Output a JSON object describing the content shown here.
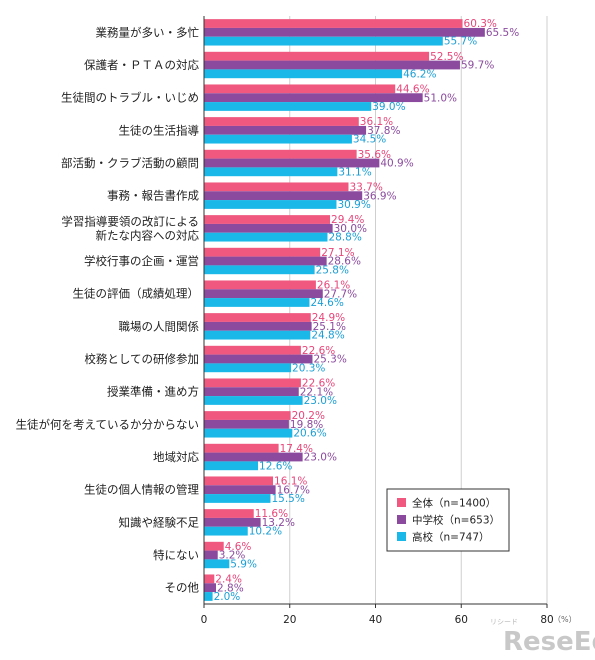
{
  "chart_data": {
    "type": "bar",
    "orientation": "horizontal",
    "categories": [
      "業務量が多い・多忙",
      "保護者・ＰＴＡの対応",
      "生徒間のトラブル・いじめ",
      "生徒の生活指導",
      "部活動・クラブ活動の顧問",
      "事務・報告書作成",
      "学習指導要領の改訂による\n新たな内容への対応",
      "学校行事の企画・運営",
      "生徒の評価（成績処理）",
      "職場の人間関係",
      "校務としての研修参加",
      "授業準備・進め方",
      "生徒が何を考えているか分からない",
      "地域対応",
      "生徒の個人情報の管理",
      "知識や経験不足",
      "特にない",
      "その他"
    ],
    "series": [
      {
        "name": "全体（n=1400）",
        "color": "#f0587f",
        "label_color": "#e8457a",
        "values": [
          60.3,
          52.5,
          44.6,
          36.1,
          35.6,
          33.7,
          29.4,
          27.1,
          26.1,
          24.9,
          22.6,
          22.6,
          20.2,
          17.4,
          16.1,
          11.6,
          4.6,
          2.4
        ]
      },
      {
        "name": "中学校（n=653）",
        "color": "#8b4a9e",
        "label_color": "#8b4a9e",
        "values": [
          65.5,
          59.7,
          51.0,
          37.8,
          40.9,
          36.9,
          30.0,
          28.6,
          27.7,
          25.1,
          25.3,
          22.1,
          19.8,
          23.0,
          16.7,
          13.2,
          3.2,
          2.8
        ]
      },
      {
        "name": "高校（n=747）",
        "color": "#1ab8e8",
        "label_color": "#1a9fd6",
        "values": [
          55.7,
          46.2,
          39.0,
          34.5,
          31.1,
          30.9,
          28.8,
          25.8,
          24.6,
          24.8,
          20.3,
          23.0,
          20.6,
          12.6,
          15.5,
          10.2,
          5.9,
          2.0
        ]
      }
    ],
    "xlim": [
      0,
      80
    ],
    "xticks": [
      0,
      20,
      40,
      60,
      80
    ],
    "unit": "（%）",
    "grid": true,
    "legend_position": "bottom-right"
  },
  "watermark": {
    "small_text": "リシード",
    "logo_text": "ReseEd"
  }
}
